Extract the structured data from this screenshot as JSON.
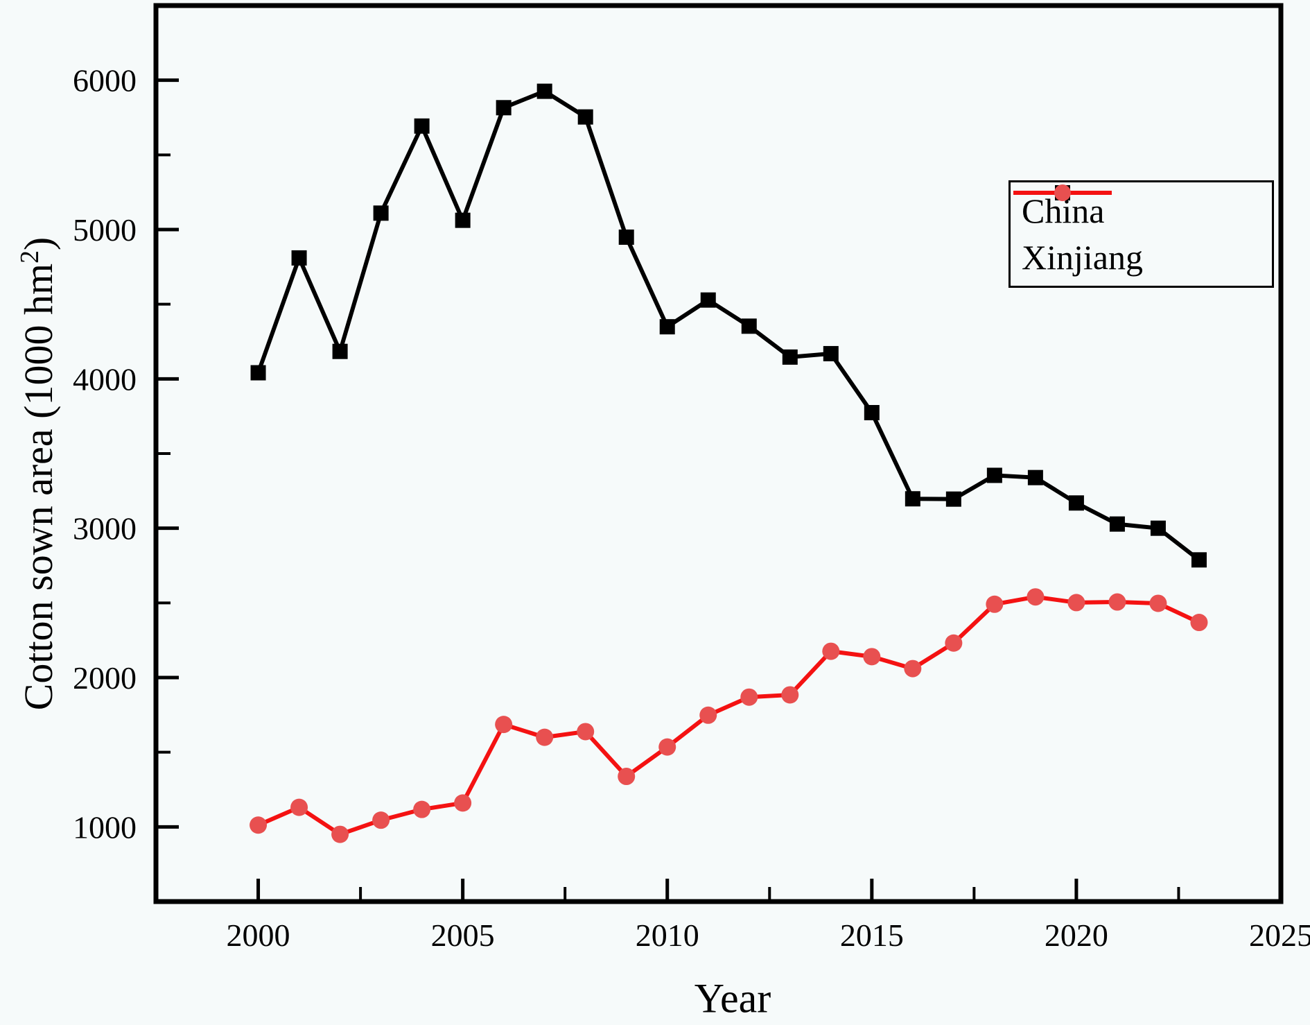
{
  "chart_data": {
    "type": "line",
    "title": "",
    "xlabel": "Year",
    "ylabel": "Cotton sown area (1000 hm²)",
    "x_range": [
      1997.5,
      2025
    ],
    "y_range": [
      500,
      6500
    ],
    "x_ticks": [
      2000,
      2005,
      2010,
      2015,
      2020,
      2025
    ],
    "x_minor_ticks": [
      2002.5,
      2007.5,
      2012.5,
      2017.5,
      2022.5
    ],
    "y_ticks": [
      1000,
      2000,
      3000,
      4000,
      5000,
      6000
    ],
    "y_minor_ticks": [
      1500,
      2500,
      3500,
      4500,
      5500
    ],
    "grid": "off",
    "legend_position": "top-right",
    "x": [
      2000,
      2001,
      2002,
      2003,
      2004,
      2005,
      2006,
      2007,
      2008,
      2009,
      2010,
      2011,
      2012,
      2013,
      2014,
      2015,
      2016,
      2017,
      2018,
      2019,
      2020,
      2021,
      2022,
      2023
    ],
    "series": [
      {
        "name": "China",
        "marker": "square",
        "line_color": "#000000",
        "marker_fill": "#000000",
        "values": [
          4041,
          4810,
          4184,
          5110,
          5693,
          5062,
          5816,
          5926,
          5754,
          4949,
          4349,
          4528,
          4353,
          4146,
          4169,
          3774,
          3197,
          3195,
          3354,
          3339,
          3169,
          3028,
          3000,
          2788
        ]
      },
      {
        "name": "Xinjiang",
        "marker": "circle",
        "line_color": "#f41212",
        "marker_fill": "#e85050",
        "values": [
          1012,
          1131,
          950,
          1045,
          1117,
          1160,
          1686,
          1600,
          1638,
          1338,
          1535,
          1748,
          1869,
          1884,
          2176,
          2140,
          2060,
          2231,
          2491,
          2540,
          2502,
          2506,
          2497,
          2369
        ]
      }
    ]
  }
}
